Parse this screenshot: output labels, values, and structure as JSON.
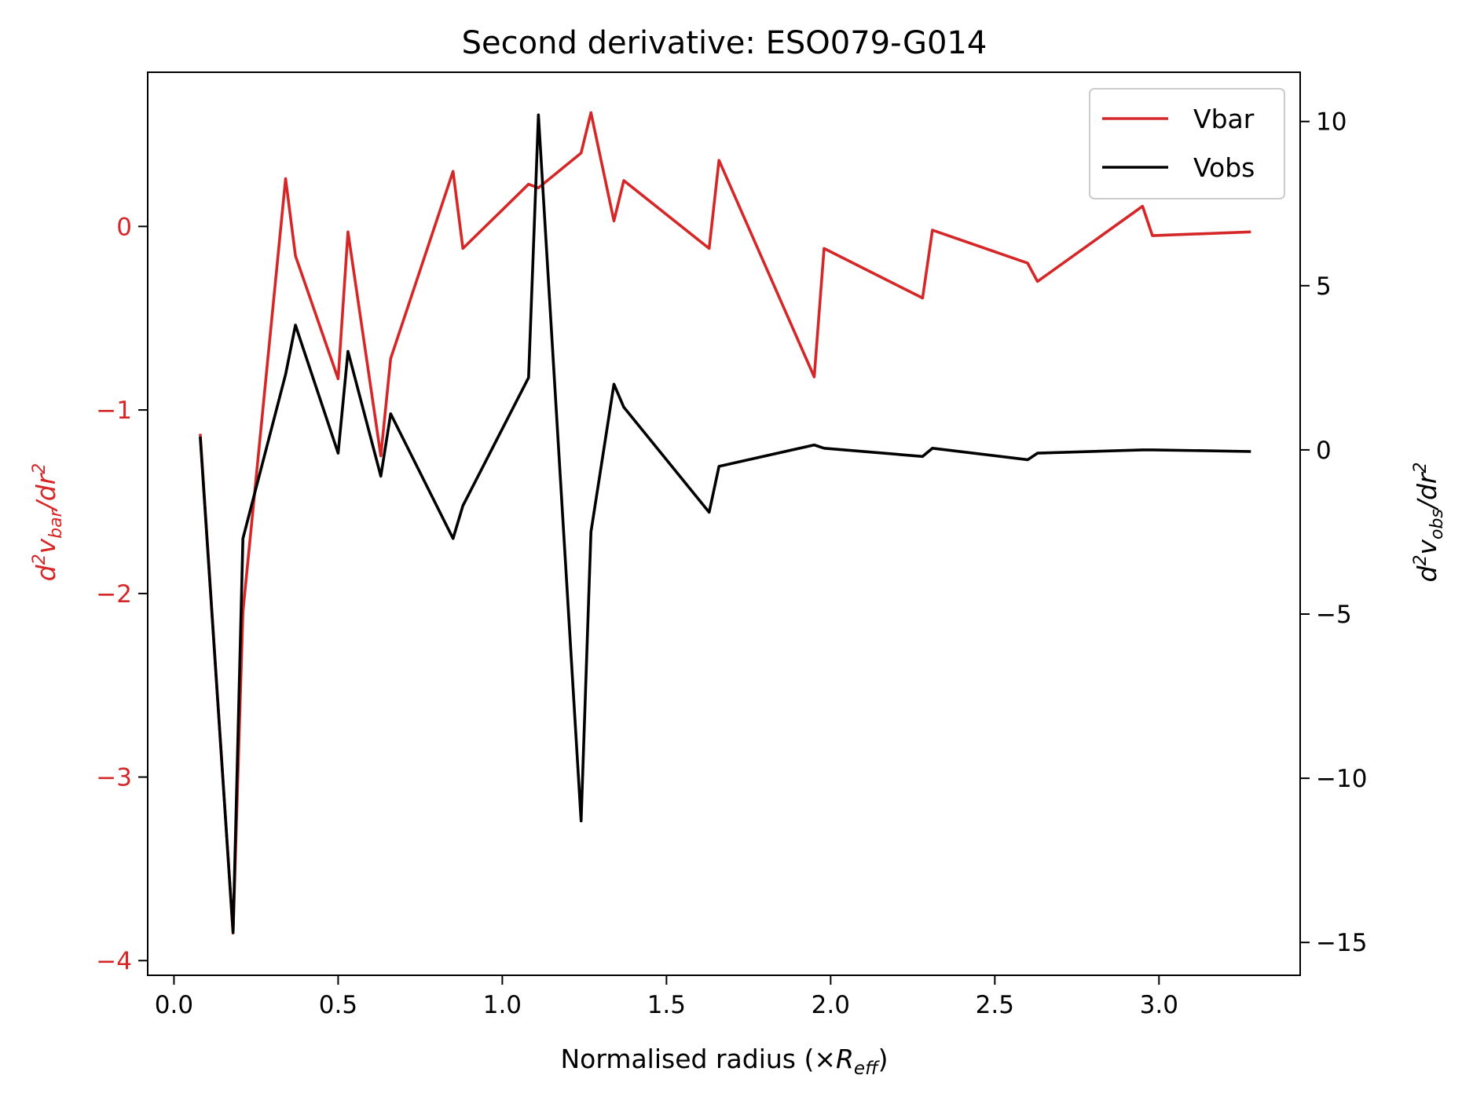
{
  "chart_data": {
    "type": "line",
    "title": "Second derivative: ESO079-G014",
    "xlabel": {
      "main": "Normalised radius (×",
      "sym": "R",
      "sub": "eff",
      "close": ")"
    },
    "ylabel_left": {
      "pre": "d",
      "sup": "2",
      "v": "v",
      "sub": "bar",
      "post": "/dr",
      "sup2": "2"
    },
    "ylabel_right": {
      "pre": "d",
      "sup": "2",
      "v": "v",
      "sub": "obs",
      "post": "/dr",
      "sup2": "2"
    },
    "xlim": [
      -0.08,
      3.43
    ],
    "ylim_left": [
      -4.08,
      0.84
    ],
    "ylim_right": [
      -16.0,
      11.5
    ],
    "x_ticks": [
      0.0,
      0.5,
      1.0,
      1.5,
      2.0,
      2.5,
      3.0
    ],
    "x_tick_labels": [
      "0.0",
      "0.5",
      "1.0",
      "1.5",
      "2.0",
      "2.5",
      "3.0"
    ],
    "y_left_ticks": [
      0,
      -1,
      -2,
      -3,
      -4
    ],
    "y_left_tick_labels": [
      "0",
      "−1",
      "−2",
      "−3",
      "−4"
    ],
    "y_right_ticks": [
      10,
      5,
      0,
      -5,
      -10,
      -15
    ],
    "y_right_tick_labels": [
      "10",
      "5",
      "0",
      "−5",
      "−10",
      "−15"
    ],
    "colors": {
      "vbar": "#d62728",
      "vobs": "#000000",
      "axis": "#000000"
    },
    "legend_position": "top-right",
    "series": [
      {
        "name": "Vbar",
        "axis": "left",
        "x": [
          0.08,
          0.18,
          0.21,
          0.34,
          0.37,
          0.5,
          0.53,
          0.63,
          0.66,
          0.85,
          0.88,
          1.08,
          1.11,
          1.24,
          1.27,
          1.34,
          1.37,
          1.63,
          1.66,
          1.95,
          1.98,
          2.28,
          2.31,
          2.6,
          2.63,
          2.95,
          2.98,
          3.28
        ],
        "y": [
          -1.13,
          -3.85,
          -2.1,
          0.26,
          -0.16,
          -0.83,
          -0.03,
          -1.25,
          -0.72,
          0.3,
          -0.12,
          0.23,
          0.21,
          0.4,
          0.62,
          0.03,
          0.25,
          -0.12,
          0.36,
          -0.82,
          -0.12,
          -0.39,
          -0.02,
          -0.2,
          -0.3,
          0.11,
          -0.05,
          -0.03
        ]
      },
      {
        "name": "Vobs",
        "axis": "right",
        "x": [
          0.08,
          0.18,
          0.21,
          0.34,
          0.37,
          0.5,
          0.53,
          0.63,
          0.66,
          0.85,
          0.88,
          1.08,
          1.11,
          1.24,
          1.27,
          1.34,
          1.37,
          1.63,
          1.66,
          1.95,
          1.98,
          2.28,
          2.31,
          2.6,
          2.63,
          2.95,
          2.98,
          3.28
        ],
        "y": [
          0.4,
          -14.7,
          -2.7,
          2.3,
          3.8,
          -0.1,
          3.0,
          -0.8,
          1.1,
          -2.7,
          -1.7,
          2.2,
          10.2,
          -11.3,
          -2.5,
          2.0,
          1.3,
          -1.9,
          -0.5,
          0.15,
          0.05,
          -0.2,
          0.05,
          -0.3,
          -0.1,
          0.0,
          0.0,
          -0.05
        ]
      }
    ]
  }
}
